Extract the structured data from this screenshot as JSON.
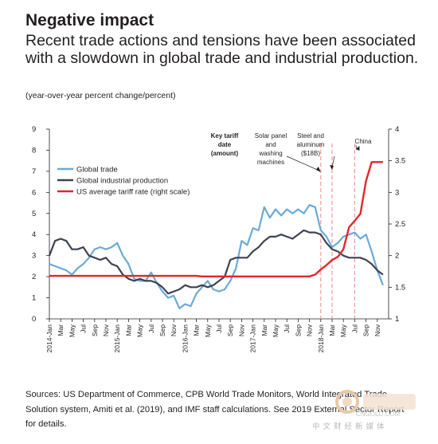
{
  "header": {
    "title": "Negative impact",
    "subtitle": "Recent trade actions and tensions have been associated with a slowdown in global trade and industrial production.",
    "units": "(year-over-year percent change/percent)"
  },
  "source": "Sources: US Department of Commerce, CPB World Trade Monitors, World Integrated Trade Solution system, Amiti et al. (2019), and IMF staff calculations. See 2019 External Sector Report for details.",
  "watermark": {
    "text": "中文财经新媒体",
    "url": "CNGOLD.COM"
  },
  "colors": {
    "trade": "#6aaad8",
    "industrial": "#3f4250",
    "tariff": "#e3262c",
    "event_lines": "#f39a9a",
    "axis": "#231f20",
    "text": "#231f20"
  },
  "chart_data": {
    "type": "line",
    "x_tick_labels": [
      "2014-Jan",
      "Mar",
      "May",
      "Jul",
      "Sep",
      "Nov",
      "2015-Jan",
      "Mar",
      "May",
      "Jul",
      "Sep",
      "Nov",
      "2016-Jan",
      "Mar",
      "May",
      "Jul",
      "Sep",
      "Nov",
      "2017-Jan",
      "Mar",
      "May",
      "Jul",
      "Sep",
      "Nov",
      "2018-Jan",
      "Mar",
      "May",
      "Jul",
      "Sep",
      "Nov"
    ],
    "x_range": [
      0,
      60
    ],
    "y_left": {
      "ticks": [
        "0",
        "1",
        "2",
        "3",
        "4",
        "5",
        "6",
        "7",
        "8",
        "9"
      ],
      "range": [
        0,
        9
      ]
    },
    "y_right": {
      "ticks": [
        "1",
        "1.5",
        "2",
        "2.5",
        "3",
        "3.5",
        "4"
      ],
      "range": [
        1,
        4
      ]
    },
    "legend": [
      "Global trade",
      "Global industrial production",
      "US average tariff rate (right scale)"
    ],
    "legend_position": "top-left",
    "annotations": {
      "header": "Key tariff date (amount)",
      "events": [
        {
          "label": "Solar panel and washing machines",
          "x": 48
        },
        {
          "label": "Steel and aluminum ($18B)",
          "x": 50
        },
        {
          "label": "China",
          "x": 54
        }
      ]
    },
    "series": [
      {
        "name": "Global trade",
        "axis": "left",
        "values": [
          2.6,
          2.5,
          2.4,
          2.3,
          2.1,
          2.4,
          2.6,
          2.9,
          3.3,
          3.4,
          3.3,
          3.4,
          3.6,
          3.0,
          2.6,
          1.9,
          1.8,
          1.8,
          2.2,
          1.7,
          1.3,
          1.0,
          1.1,
          0.5,
          0.7,
          0.6,
          1.2,
          1.5,
          1.8,
          1.4,
          1.3,
          1.4,
          1.8,
          2.4,
          3.7,
          3.5,
          4.3,
          4.2,
          5.3,
          4.8,
          5.2,
          4.9,
          5.2,
          5.0,
          5.2,
          5.0,
          5.4,
          5.3,
          4.2,
          3.9,
          3.4,
          3.6,
          3.9,
          4.0,
          4.1,
          3.8,
          4.0,
          3.2,
          2.3,
          1.6
        ]
      },
      {
        "name": "Global industrial production",
        "axis": "left",
        "values": [
          3.0,
          3.7,
          3.8,
          3.7,
          3.3,
          3.3,
          3.4,
          3.0,
          2.9,
          2.8,
          2.9,
          2.6,
          2.5,
          2.1,
          1.9,
          1.8,
          1.9,
          1.8,
          1.8,
          1.7,
          1.5,
          1.2,
          1.3,
          1.4,
          1.6,
          1.5,
          1.5,
          1.6,
          1.5,
          1.6,
          1.8,
          2.0,
          2.8,
          2.9,
          2.9,
          2.9,
          3.2,
          3.4,
          3.7,
          3.9,
          3.9,
          4.0,
          3.9,
          3.8,
          4.0,
          4.2,
          4.1,
          4.1,
          4.0,
          3.6,
          3.3,
          3.2,
          3.0,
          2.9,
          2.9,
          2.9,
          2.8,
          2.6,
          2.3,
          2.1
        ]
      },
      {
        "name": "US average tariff rate (right scale)",
        "axis": "right",
        "values": [
          1.68,
          1.68,
          1.68,
          1.68,
          1.68,
          1.68,
          1.68,
          1.68,
          1.68,
          1.68,
          1.68,
          1.68,
          1.68,
          1.68,
          1.68,
          1.68,
          1.68,
          1.68,
          1.68,
          1.68,
          1.68,
          1.68,
          1.68,
          1.68,
          1.68,
          1.68,
          1.68,
          1.67,
          1.67,
          1.67,
          1.67,
          1.67,
          1.67,
          1.67,
          1.67,
          1.67,
          1.67,
          1.67,
          1.67,
          1.67,
          1.67,
          1.67,
          1.67,
          1.67,
          1.67,
          1.67,
          1.67,
          1.7,
          1.78,
          1.85,
          1.93,
          1.98,
          2.1,
          2.45,
          2.55,
          2.66,
          3.18,
          3.48,
          3.48,
          3.48
        ]
      }
    ]
  }
}
